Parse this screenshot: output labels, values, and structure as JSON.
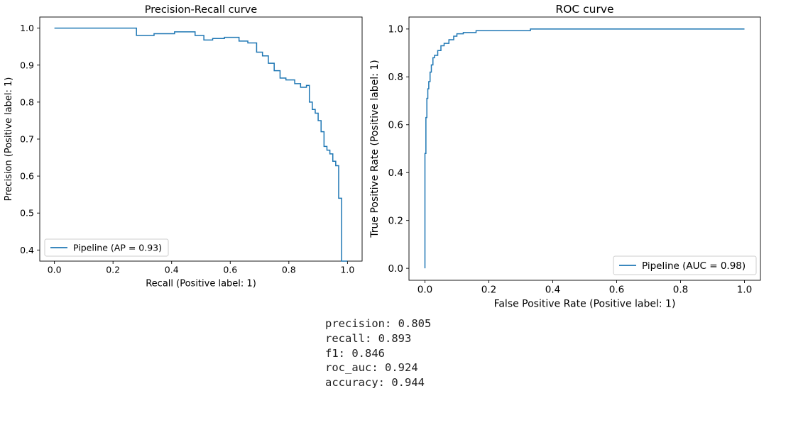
{
  "chart_data": [
    {
      "type": "line",
      "chart_style": "step",
      "title": "Precision-Recall curve",
      "xlabel": "Recall (Positive label: 1)",
      "ylabel": "Precision (Positive label: 1)",
      "xlim": [
        -0.05,
        1.05
      ],
      "ylim": [
        0.37,
        1.03
      ],
      "xticks": [
        0.0,
        0.2,
        0.4,
        0.6,
        0.8,
        1.0
      ],
      "xtick_labels": [
        "0.0",
        "0.2",
        "0.4",
        "0.6",
        "0.8",
        "1.0"
      ],
      "yticks": [
        0.4,
        0.5,
        0.6,
        0.7,
        0.8,
        0.9,
        1.0
      ],
      "ytick_labels": [
        "0.4",
        "0.5",
        "0.6",
        "0.7",
        "0.8",
        "0.9",
        "1.0"
      ],
      "grid": false,
      "legend_position": "lower-left",
      "series": [
        {
          "name": "Pipeline (AP = 0.93)",
          "color": "#1f77b4",
          "x": [
            0.0,
            0.28,
            0.28,
            0.34,
            0.34,
            0.41,
            0.41,
            0.48,
            0.48,
            0.51,
            0.51,
            0.54,
            0.54,
            0.58,
            0.58,
            0.63,
            0.63,
            0.66,
            0.66,
            0.69,
            0.69,
            0.71,
            0.71,
            0.73,
            0.73,
            0.75,
            0.75,
            0.77,
            0.77,
            0.79,
            0.79,
            0.82,
            0.82,
            0.84,
            0.84,
            0.86,
            0.86,
            0.87,
            0.87,
            0.88,
            0.88,
            0.89,
            0.89,
            0.9,
            0.9,
            0.91,
            0.91,
            0.92,
            0.92,
            0.93,
            0.93,
            0.94,
            0.94,
            0.95,
            0.95,
            0.96,
            0.96,
            0.97,
            0.97,
            0.98,
            0.98,
            0.99,
            0.99,
            1.0
          ],
          "y": [
            1.0,
            1.0,
            0.98,
            0.98,
            0.985,
            0.985,
            0.99,
            0.99,
            0.98,
            0.98,
            0.968,
            0.968,
            0.972,
            0.972,
            0.975,
            0.975,
            0.965,
            0.965,
            0.96,
            0.96,
            0.935,
            0.935,
            0.925,
            0.925,
            0.905,
            0.905,
            0.885,
            0.885,
            0.865,
            0.865,
            0.86,
            0.86,
            0.85,
            0.85,
            0.84,
            0.84,
            0.845,
            0.845,
            0.8,
            0.8,
            0.78,
            0.78,
            0.77,
            0.77,
            0.75,
            0.75,
            0.72,
            0.72,
            0.68,
            0.68,
            0.67,
            0.67,
            0.66,
            0.66,
            0.64,
            0.64,
            0.628,
            0.628,
            0.54,
            0.54,
            0.37,
            0.37,
            0.37,
            0.37
          ]
        }
      ]
    },
    {
      "type": "line",
      "chart_style": "step",
      "title": "ROC curve",
      "xlabel": "False Positive Rate (Positive label: 1)",
      "ylabel": "True Positive Rate (Positive label: 1)",
      "xlim": [
        -0.05,
        1.05
      ],
      "ylim": [
        -0.05,
        1.05
      ],
      "xticks": [
        0.0,
        0.2,
        0.4,
        0.6,
        0.8,
        1.0
      ],
      "xtick_labels": [
        "0.0",
        "0.2",
        "0.4",
        "0.6",
        "0.8",
        "1.0"
      ],
      "yticks": [
        0.0,
        0.2,
        0.4,
        0.6,
        0.8,
        1.0
      ],
      "ytick_labels": [
        "0.0",
        "0.2",
        "0.4",
        "0.6",
        "0.8",
        "1.0"
      ],
      "grid": false,
      "legend_position": "lower-right",
      "series": [
        {
          "name": "Pipeline (AUC = 0.98)",
          "color": "#1f77b4",
          "x": [
            0.0,
            0.0,
            0.003,
            0.003,
            0.006,
            0.006,
            0.009,
            0.009,
            0.012,
            0.012,
            0.016,
            0.016,
            0.02,
            0.02,
            0.025,
            0.025,
            0.03,
            0.03,
            0.04,
            0.04,
            0.05,
            0.05,
            0.06,
            0.06,
            0.075,
            0.075,
            0.09,
            0.09,
            0.1,
            0.1,
            0.12,
            0.12,
            0.16,
            0.16,
            0.33,
            0.33,
            1.0
          ],
          "y": [
            0.0,
            0.48,
            0.48,
            0.63,
            0.63,
            0.71,
            0.71,
            0.75,
            0.75,
            0.78,
            0.78,
            0.82,
            0.82,
            0.85,
            0.85,
            0.88,
            0.88,
            0.89,
            0.89,
            0.91,
            0.91,
            0.93,
            0.93,
            0.94,
            0.94,
            0.955,
            0.955,
            0.97,
            0.97,
            0.98,
            0.98,
            0.985,
            0.985,
            0.993,
            0.993,
            1.0,
            1.0
          ]
        }
      ]
    }
  ],
  "metrics": [
    "precision: 0.805",
    "recall: 0.893",
    "f1: 0.846",
    "roc_auc: 0.924",
    "accuracy: 0.944"
  ]
}
